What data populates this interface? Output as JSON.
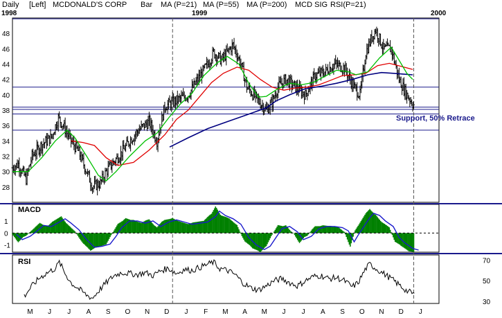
{
  "header": {
    "period": "Daily",
    "axis_side": "[Left]",
    "title": "MCDONALD'S CORP",
    "style": "Bar",
    "legend": [
      {
        "label": "MA (P=21)",
        "color": "#00c000"
      },
      {
        "label": "MA (P=55)",
        "color": "#e00000"
      },
      {
        "label": "MA (P=200)",
        "color": "#000080"
      },
      {
        "label": "MCD SIG",
        "color": "#008000"
      },
      {
        "label": "RSI(P=21)",
        "color": "#000000"
      }
    ]
  },
  "year_labels": [
    "1998",
    "1999",
    "2000"
  ],
  "annotation": "Support, 50% Retrace",
  "chart_data": [
    {
      "type": "bar",
      "subtype": "ohlc-price",
      "title": "MCDONALD'S CORP",
      "ylim": [
        26,
        50
      ],
      "yticks": [
        28,
        30,
        32,
        34,
        36,
        38,
        40,
        42,
        44,
        46,
        48
      ],
      "hlines": [
        49.9,
        41,
        38.4,
        38.1,
        37.5,
        35.4
      ],
      "months": [
        "M",
        "J",
        "J",
        "A",
        "S",
        "O",
        "N",
        "D",
        "J",
        "F",
        "M",
        "A",
        "M",
        "J",
        "J",
        "A",
        "S",
        "O",
        "N",
        "D",
        "J"
      ],
      "price_path": [
        {
          "t": 0,
          "c": 30.5
        },
        {
          "t": 0.3,
          "c": 31
        },
        {
          "t": 0.7,
          "c": 29
        },
        {
          "t": 1.0,
          "c": 32
        },
        {
          "t": 1.5,
          "c": 33.5
        },
        {
          "t": 2.0,
          "c": 34.5
        },
        {
          "t": 2.35,
          "c": 37
        },
        {
          "t": 2.6,
          "c": 36
        },
        {
          "t": 3.0,
          "c": 34
        },
        {
          "t": 3.4,
          "c": 32.5
        },
        {
          "t": 3.8,
          "c": 30
        },
        {
          "t": 4.1,
          "c": 28
        },
        {
          "t": 4.5,
          "c": 28.5
        },
        {
          "t": 4.8,
          "c": 30
        },
        {
          "t": 5.1,
          "c": 31
        },
        {
          "t": 5.6,
          "c": 32.5
        },
        {
          "t": 6.0,
          "c": 34
        },
        {
          "t": 6.5,
          "c": 35.5
        },
        {
          "t": 7.0,
          "c": 36.5
        },
        {
          "t": 7.4,
          "c": 34
        },
        {
          "t": 7.8,
          "c": 38.5
        },
        {
          "t": 8.2,
          "c": 39
        },
        {
          "t": 8.6,
          "c": 39.5
        },
        {
          "t": 9.0,
          "c": 40
        },
        {
          "t": 9.5,
          "c": 42
        },
        {
          "t": 10.0,
          "c": 44
        },
        {
          "t": 10.3,
          "c": 45.5
        },
        {
          "t": 10.7,
          "c": 44.5
        },
        {
          "t": 11.0,
          "c": 45.5
        },
        {
          "t": 11.3,
          "c": 46.5
        },
        {
          "t": 11.7,
          "c": 44
        },
        {
          "t": 12.0,
          "c": 41
        },
        {
          "t": 12.5,
          "c": 39.5
        },
        {
          "t": 13.0,
          "c": 38
        },
        {
          "t": 13.3,
          "c": 39
        },
        {
          "t": 13.6,
          "c": 41
        },
        {
          "t": 14.0,
          "c": 42
        },
        {
          "t": 14.5,
          "c": 41
        },
        {
          "t": 15.0,
          "c": 40
        },
        {
          "t": 15.5,
          "c": 42.5
        },
        {
          "t": 16.0,
          "c": 43
        },
        {
          "t": 16.5,
          "c": 44
        },
        {
          "t": 17.0,
          "c": 43.5
        },
        {
          "t": 17.5,
          "c": 41
        },
        {
          "t": 17.8,
          "c": 40
        },
        {
          "t": 18.1,
          "c": 45.5
        },
        {
          "t": 18.4,
          "c": 47.5
        },
        {
          "t": 18.6,
          "c": 48.5
        },
        {
          "t": 19.0,
          "c": 46
        },
        {
          "t": 19.4,
          "c": 46
        },
        {
          "t": 19.8,
          "c": 42
        },
        {
          "t": 20.2,
          "c": 40
        },
        {
          "t": 20.6,
          "c": 38.5
        }
      ],
      "ma21": [
        [
          0,
          30
        ],
        [
          0.8,
          30
        ],
        [
          1.5,
          31.8
        ],
        [
          2.2,
          34
        ],
        [
          2.8,
          35.4
        ],
        [
          3.2,
          34.4
        ],
        [
          3.8,
          32
        ],
        [
          4.4,
          29.5
        ],
        [
          4.8,
          28.8
        ],
        [
          5.3,
          30
        ],
        [
          6.0,
          32
        ],
        [
          6.8,
          34
        ],
        [
          7.4,
          35
        ],
        [
          8.0,
          37
        ],
        [
          8.6,
          38.8
        ],
        [
          9.2,
          40.2
        ],
        [
          9.8,
          42.5
        ],
        [
          10.5,
          44.2
        ],
        [
          11.0,
          45
        ],
        [
          11.6,
          44
        ],
        [
          12.1,
          41.5
        ],
        [
          12.6,
          39.7
        ],
        [
          13.0,
          39.8
        ],
        [
          13.6,
          40.8
        ],
        [
          14.2,
          41.5
        ],
        [
          14.8,
          41.3
        ],
        [
          15.4,
          41.6
        ],
        [
          16.0,
          42.4
        ],
        [
          16.6,
          43.2
        ],
        [
          17.2,
          43
        ],
        [
          17.6,
          42.6
        ],
        [
          18.2,
          43
        ],
        [
          18.8,
          44.8
        ],
        [
          19.4,
          46.2
        ],
        [
          19.8,
          44.5
        ],
        [
          20.2,
          42.8
        ],
        [
          20.5,
          42
        ]
      ],
      "ma55": [
        [
          3.0,
          34
        ],
        [
          3.6,
          33.8
        ],
        [
          4.2,
          33.4
        ],
        [
          4.8,
          31.8
        ],
        [
          5.4,
          30.8
        ],
        [
          6.2,
          31.2
        ],
        [
          7.0,
          32.8
        ],
        [
          7.8,
          34.8
        ],
        [
          8.4,
          36.8
        ],
        [
          9.0,
          38
        ],
        [
          9.6,
          39.8
        ],
        [
          10.2,
          41.6
        ],
        [
          10.8,
          42.8
        ],
        [
          11.5,
          43.6
        ],
        [
          12.1,
          43.2
        ],
        [
          12.7,
          42
        ],
        [
          13.3,
          41
        ],
        [
          13.9,
          40.6
        ],
        [
          14.5,
          40.9
        ],
        [
          15.1,
          41
        ],
        [
          15.7,
          41.3
        ],
        [
          16.3,
          41.9
        ],
        [
          16.9,
          42.5
        ],
        [
          17.5,
          42.6
        ],
        [
          18.1,
          42.8
        ],
        [
          18.7,
          43.8
        ],
        [
          19.3,
          44.1
        ],
        [
          19.9,
          43.7
        ],
        [
          20.5,
          43.3
        ]
      ],
      "ma200": [
        [
          8.05,
          33.2
        ],
        [
          9.0,
          34.4
        ],
        [
          10.0,
          35.6
        ],
        [
          11.0,
          36.5
        ],
        [
          12.0,
          37.4
        ],
        [
          13.0,
          38.3
        ],
        [
          13.5,
          39.2
        ],
        [
          14.2,
          40
        ],
        [
          15.0,
          40.8
        ],
        [
          15.8,
          41.1
        ],
        [
          16.6,
          41.5
        ],
        [
          17.4,
          42
        ],
        [
          18.2,
          42.6
        ],
        [
          18.9,
          42.9
        ],
        [
          19.5,
          42.8
        ],
        [
          20.0,
          42.7
        ],
        [
          20.5,
          42.6
        ]
      ]
    },
    {
      "type": "area",
      "subtype": "macd",
      "title": "MACD",
      "ylim": [
        -1.6,
        2.4
      ],
      "yticks": [
        1,
        0,
        -1
      ],
      "macd_path": [
        [
          0,
          -0.1
        ],
        [
          0.3,
          -0.6
        ],
        [
          0.7,
          -0.3
        ],
        [
          1.0,
          0.1
        ],
        [
          1.4,
          0.7
        ],
        [
          1.8,
          0.6
        ],
        [
          2.2,
          1.0
        ],
        [
          2.5,
          1.3
        ],
        [
          2.8,
          0.9
        ],
        [
          3.2,
          0.3
        ],
        [
          3.6,
          -0.6
        ],
        [
          4.0,
          -1.3
        ],
        [
          4.4,
          -1.2
        ],
        [
          4.8,
          -1.0
        ],
        [
          5.1,
          -0.3
        ],
        [
          5.4,
          0.5
        ],
        [
          5.8,
          1.1
        ],
        [
          6.2,
          1.1
        ],
        [
          6.6,
          0.9
        ],
        [
          7.0,
          1.1
        ],
        [
          7.4,
          0.6
        ],
        [
          7.8,
          1.0
        ],
        [
          8.2,
          1.2
        ],
        [
          8.6,
          1.0
        ],
        [
          9.0,
          0.8
        ],
        [
          9.4,
          0.9
        ],
        [
          9.8,
          1.0
        ],
        [
          10.2,
          1.5
        ],
        [
          10.4,
          2.0
        ],
        [
          10.7,
          1.6
        ],
        [
          11.1,
          1.3
        ],
        [
          11.5,
          0.8
        ],
        [
          11.9,
          -0.4
        ],
        [
          12.3,
          -1.1
        ],
        [
          12.7,
          -1.5
        ],
        [
          13.0,
          -1.2
        ],
        [
          13.3,
          -0.4
        ],
        [
          13.6,
          0.4
        ],
        [
          14.0,
          0.6
        ],
        [
          14.4,
          0.1
        ],
        [
          14.7,
          -0.6
        ],
        [
          15.1,
          -0.3
        ],
        [
          15.5,
          0.4
        ],
        [
          15.9,
          0.6
        ],
        [
          16.3,
          0.6
        ],
        [
          16.7,
          0.5
        ],
        [
          17.0,
          0.2
        ],
        [
          17.3,
          -0.8
        ],
        [
          17.5,
          -0.2
        ],
        [
          17.8,
          0.6
        ],
        [
          18.1,
          1.4
        ],
        [
          18.3,
          1.8
        ],
        [
          18.6,
          1.6
        ],
        [
          18.9,
          1.1
        ],
        [
          19.3,
          0.6
        ],
        [
          19.6,
          -0.4
        ],
        [
          19.9,
          -0.9
        ],
        [
          20.3,
          -1.4
        ],
        [
          20.6,
          -1.55
        ]
      ]
    },
    {
      "type": "line",
      "subtype": "rsi",
      "title": "RSI",
      "ylim": [
        28,
        75
      ],
      "yticks": [
        70,
        50,
        30
      ],
      "rsi_path": [
        [
          0.6,
          35
        ],
        [
          1.0,
          45
        ],
        [
          1.4,
          53
        ],
        [
          1.8,
          58
        ],
        [
          2.2,
          62
        ],
        [
          2.4,
          68
        ],
        [
          2.7,
          57
        ],
        [
          3.0,
          48
        ],
        [
          3.4,
          42
        ],
        [
          3.8,
          36
        ],
        [
          4.1,
          33
        ],
        [
          4.4,
          40
        ],
        [
          4.8,
          48
        ],
        [
          5.2,
          55
        ],
        [
          5.6,
          58
        ],
        [
          6.0,
          57
        ],
        [
          6.4,
          56
        ],
        [
          6.8,
          58
        ],
        [
          7.2,
          55
        ],
        [
          7.6,
          60
        ],
        [
          8.0,
          62
        ],
        [
          8.4,
          57
        ],
        [
          8.8,
          61
        ],
        [
          9.2,
          60
        ],
        [
          9.6,
          63
        ],
        [
          10.0,
          66
        ],
        [
          10.3,
          68
        ],
        [
          10.6,
          62
        ],
        [
          11.0,
          60
        ],
        [
          11.4,
          56
        ],
        [
          11.8,
          48
        ],
        [
          12.2,
          43
        ],
        [
          12.6,
          41
        ],
        [
          13.0,
          45
        ],
        [
          13.4,
          50
        ],
        [
          13.8,
          52
        ],
        [
          14.2,
          48
        ],
        [
          14.6,
          45
        ],
        [
          15.0,
          50
        ],
        [
          15.4,
          54
        ],
        [
          15.8,
          55
        ],
        [
          16.2,
          52
        ],
        [
          16.6,
          53
        ],
        [
          17.0,
          50
        ],
        [
          17.4,
          44
        ],
        [
          17.7,
          48
        ],
        [
          18.1,
          62
        ],
        [
          18.3,
          66
        ],
        [
          18.6,
          62
        ],
        [
          19.0,
          57
        ],
        [
          19.4,
          52
        ],
        [
          19.8,
          46
        ],
        [
          20.2,
          40
        ],
        [
          20.6,
          37
        ]
      ]
    }
  ]
}
